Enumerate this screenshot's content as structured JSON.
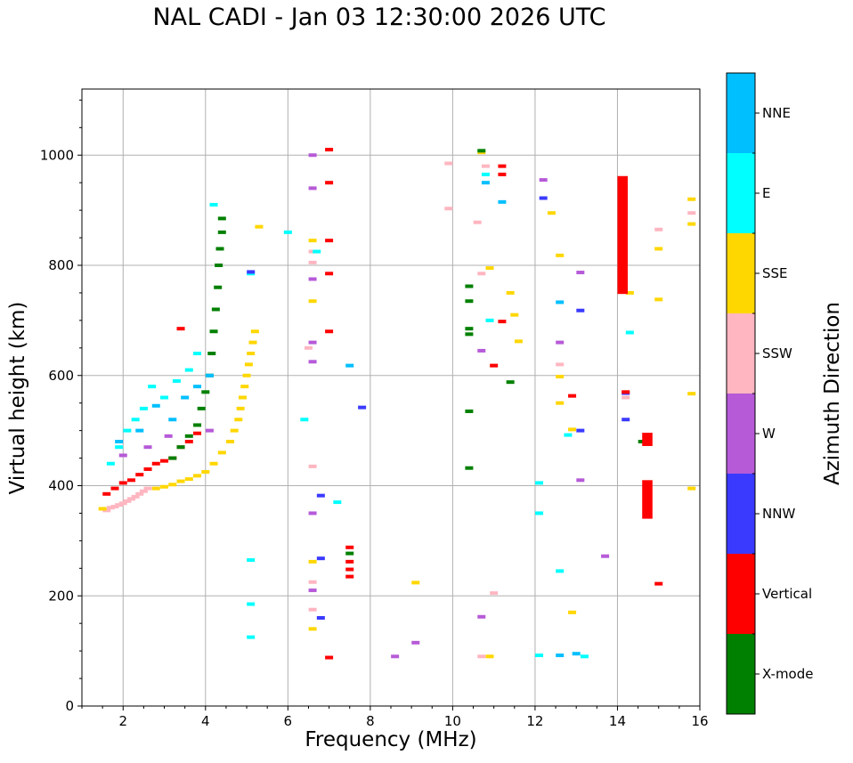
{
  "chart_data": {
    "type": "scatter",
    "title": "NAL CADI - Jan 03 12:30:00 2026 UTC",
    "xlabel": "Frequency (MHz)",
    "ylabel": "Virtual height (km)",
    "xlim": [
      1,
      16
    ],
    "ylim": [
      0,
      1120
    ],
    "xticks": [
      2,
      4,
      6,
      8,
      10,
      12,
      14,
      16
    ],
    "yticks": [
      0,
      200,
      400,
      600,
      800,
      1000
    ],
    "grid": true,
    "colorbar": {
      "label": "Azimuth Direction",
      "categories": [
        {
          "name": "X-mode",
          "color": "#008000"
        },
        {
          "name": "Vertical",
          "color": "#ff0000"
        },
        {
          "name": "NNW",
          "color": "#3a3aff"
        },
        {
          "name": "W",
          "color": "#b65ad8"
        },
        {
          "name": "SSW",
          "color": "#ffb6c1"
        },
        {
          "name": "SSE",
          "color": "#ffd700"
        },
        {
          "name": "E",
          "color": "#00ffff"
        },
        {
          "name": "NNE",
          "color": "#00bfff"
        }
      ]
    },
    "traces": [
      {
        "name": "F-layer trace (SSW)",
        "category": "SSW",
        "points": [
          [
            1.6,
            355
          ],
          [
            1.7,
            360
          ],
          [
            1.8,
            362
          ],
          [
            1.9,
            365
          ],
          [
            2.0,
            368
          ],
          [
            2.1,
            372
          ],
          [
            2.2,
            376
          ],
          [
            2.3,
            380
          ],
          [
            2.4,
            385
          ],
          [
            2.5,
            390
          ],
          [
            2.6,
            395
          ]
        ]
      },
      {
        "name": "F-layer trace (SSE)",
        "category": "SSE",
        "points": [
          [
            1.5,
            358
          ],
          [
            2.8,
            395
          ],
          [
            3.0,
            398
          ],
          [
            3.2,
            402
          ],
          [
            3.4,
            408
          ],
          [
            3.6,
            412
          ],
          [
            3.8,
            418
          ],
          [
            4.0,
            425
          ],
          [
            4.2,
            440
          ],
          [
            4.4,
            460
          ],
          [
            4.6,
            480
          ],
          [
            4.7,
            500
          ],
          [
            4.8,
            520
          ],
          [
            4.85,
            540
          ],
          [
            4.9,
            560
          ],
          [
            4.95,
            580
          ],
          [
            5.0,
            600
          ],
          [
            5.05,
            620
          ],
          [
            5.1,
            640
          ],
          [
            5.15,
            660
          ],
          [
            5.2,
            680
          ]
        ]
      },
      {
        "name": "F-layer trace (Vertical)",
        "category": "Vertical",
        "points": [
          [
            1.6,
            385
          ],
          [
            1.8,
            395
          ],
          [
            2.0,
            405
          ],
          [
            2.2,
            410
          ],
          [
            2.4,
            420
          ],
          [
            2.6,
            430
          ],
          [
            2.8,
            440
          ],
          [
            3.0,
            445
          ],
          [
            3.2,
            450
          ],
          [
            3.4,
            470
          ],
          [
            3.6,
            480
          ],
          [
            3.8,
            495
          ]
        ]
      },
      {
        "name": "F-layer trace (X-mode)",
        "category": "X-mode",
        "points": [
          [
            3.2,
            450
          ],
          [
            3.4,
            470
          ],
          [
            3.6,
            490
          ],
          [
            3.8,
            510
          ],
          [
            3.9,
            540
          ],
          [
            4.0,
            570
          ],
          [
            4.1,
            600
          ],
          [
            4.15,
            640
          ],
          [
            4.2,
            680
          ],
          [
            4.25,
            720
          ],
          [
            4.3,
            760
          ],
          [
            4.32,
            800
          ],
          [
            4.35,
            830
          ],
          [
            4.4,
            860
          ],
          [
            4.4,
            885
          ]
        ]
      },
      {
        "name": "scatter (E)",
        "category": "E",
        "points": [
          [
            1.7,
            440
          ],
          [
            1.9,
            470
          ],
          [
            2.1,
            500
          ],
          [
            2.3,
            520
          ],
          [
            2.5,
            540
          ],
          [
            2.7,
            580
          ],
          [
            3.0,
            560
          ],
          [
            3.3,
            590
          ],
          [
            3.6,
            610
          ],
          [
            3.8,
            640
          ],
          [
            4.2,
            910
          ],
          [
            5.1,
            785
          ],
          [
            5.1,
            265
          ],
          [
            5.1,
            185
          ],
          [
            5.1,
            125
          ],
          [
            6.0,
            860
          ],
          [
            6.4,
            520
          ],
          [
            7.2,
            370
          ]
        ]
      },
      {
        "name": "scatter (NNE)",
        "category": "NNE",
        "points": [
          [
            1.9,
            480
          ],
          [
            2.4,
            500
          ],
          [
            2.8,
            545
          ],
          [
            3.2,
            520
          ],
          [
            3.5,
            560
          ],
          [
            3.8,
            580
          ],
          [
            4.1,
            600
          ],
          [
            7.5,
            618
          ]
        ]
      },
      {
        "name": "scatter (W)",
        "category": "W",
        "points": [
          [
            2.0,
            455
          ],
          [
            2.6,
            470
          ],
          [
            3.1,
            490
          ],
          [
            4.1,
            500
          ],
          [
            6.6,
            1000
          ],
          [
            6.6,
            940
          ],
          [
            6.6,
            775
          ],
          [
            6.6,
            660
          ],
          [
            6.6,
            625
          ],
          [
            6.6,
            350
          ],
          [
            6.6,
            210
          ],
          [
            8.6,
            90
          ],
          [
            9.1,
            115
          ],
          [
            10.7,
            645
          ],
          [
            10.7,
            162
          ],
          [
            12.2,
            955
          ],
          [
            12.6,
            660
          ],
          [
            13.1,
            787
          ],
          [
            13.1,
            410
          ],
          [
            13.7,
            272
          ]
        ]
      },
      {
        "name": "scatter (NNW)",
        "category": "NNW",
        "points": [
          [
            5.1,
            788
          ],
          [
            6.8,
            382
          ],
          [
            6.8,
            268
          ],
          [
            6.8,
            160
          ],
          [
            7.8,
            542
          ],
          [
            12.2,
            922
          ],
          [
            13.1,
            718
          ],
          [
            13.1,
            500
          ],
          [
            14.2,
            520
          ],
          [
            14.2,
            568
          ]
        ]
      },
      {
        "name": "scatter (Vertical, high)",
        "category": "Vertical",
        "points": [
          [
            3.4,
            685
          ],
          [
            7.0,
            1010
          ],
          [
            7.0,
            950
          ],
          [
            7.0,
            845
          ],
          [
            7.0,
            785
          ],
          [
            7.0,
            680
          ],
          [
            7.0,
            88
          ],
          [
            7.5,
            288
          ],
          [
            7.5,
            262
          ],
          [
            7.5,
            248
          ],
          [
            7.5,
            235
          ],
          [
            11.0,
            618
          ],
          [
            11.2,
            980
          ],
          [
            11.2,
            965
          ],
          [
            11.2,
            698
          ],
          [
            12.9,
            563
          ],
          [
            14.2,
            570
          ],
          [
            15.0,
            222
          ]
        ]
      },
      {
        "name": "scatter (SSE, high)",
        "category": "SSE",
        "points": [
          [
            5.3,
            870
          ],
          [
            6.6,
            845
          ],
          [
            6.6,
            735
          ],
          [
            6.6,
            262
          ],
          [
            6.6,
            140
          ],
          [
            9.1,
            224
          ],
          [
            10.7,
            1005
          ],
          [
            10.9,
            795
          ],
          [
            11.4,
            750
          ],
          [
            11.5,
            710
          ],
          [
            11.6,
            662
          ],
          [
            12.4,
            895
          ],
          [
            12.6,
            818
          ],
          [
            12.6,
            598
          ],
          [
            12.6,
            550
          ],
          [
            12.9,
            502
          ],
          [
            12.9,
            170
          ],
          [
            14.3,
            750
          ],
          [
            15.0,
            830
          ],
          [
            15.0,
            738
          ],
          [
            15.8,
            920
          ],
          [
            15.8,
            875
          ],
          [
            15.8,
            567
          ],
          [
            15.8,
            395
          ],
          [
            10.9,
            90
          ]
        ]
      },
      {
        "name": "scatter (SSW, high)",
        "category": "SSW",
        "points": [
          [
            6.5,
            650
          ],
          [
            6.6,
            825
          ],
          [
            6.6,
            805
          ],
          [
            6.6,
            435
          ],
          [
            6.6,
            225
          ],
          [
            6.6,
            175
          ],
          [
            9.9,
            985
          ],
          [
            9.9,
            903
          ],
          [
            10.6,
            878
          ],
          [
            10.7,
            785
          ],
          [
            10.7,
            90
          ],
          [
            10.8,
            980
          ],
          [
            11.0,
            205
          ],
          [
            12.6,
            620
          ],
          [
            14.2,
            560
          ],
          [
            15.0,
            865
          ],
          [
            15.8,
            895
          ]
        ]
      },
      {
        "name": "scatter (X-mode, high)",
        "category": "X-mode",
        "points": [
          [
            10.4,
            762
          ],
          [
            10.4,
            735
          ],
          [
            10.4,
            685
          ],
          [
            10.4,
            675
          ],
          [
            10.4,
            535
          ],
          [
            10.4,
            432
          ],
          [
            10.7,
            1008
          ],
          [
            11.4,
            588
          ],
          [
            14.1,
            925
          ],
          [
            14.1,
            900
          ],
          [
            14.6,
            480
          ],
          [
            7.5,
            277
          ]
        ]
      },
      {
        "name": "scatter (NNE, high)",
        "category": "NNE",
        "points": [
          [
            10.8,
            950
          ],
          [
            11.2,
            915
          ],
          [
            12.6,
            733
          ],
          [
            12.6,
            92
          ],
          [
            13.0,
            95
          ]
        ]
      },
      {
        "name": "scatter (E, high)",
        "category": "E",
        "points": [
          [
            6.7,
            825
          ],
          [
            10.8,
            965
          ],
          [
            10.9,
            700
          ],
          [
            12.1,
            405
          ],
          [
            12.1,
            350
          ],
          [
            12.1,
            92
          ],
          [
            12.6,
            245
          ],
          [
            12.8,
            492
          ],
          [
            13.2,
            90
          ],
          [
            14.3,
            678
          ]
        ]
      }
    ],
    "blocks": [
      {
        "name": "Vertical block high",
        "category": "Vertical",
        "x": [
          14.0,
          14.25
        ],
        "y": [
          748,
          962
        ]
      },
      {
        "name": "Vertical block mid",
        "category": "Vertical",
        "x": [
          14.6,
          14.85
        ],
        "y": [
          472,
          496
        ]
      },
      {
        "name": "Vertical block low",
        "category": "Vertical",
        "x": [
          14.6,
          14.85
        ],
        "y": [
          340,
          410
        ]
      }
    ]
  }
}
